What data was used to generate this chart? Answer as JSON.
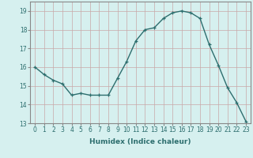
{
  "x": [
    0,
    1,
    2,
    3,
    4,
    5,
    6,
    7,
    8,
    9,
    10,
    11,
    12,
    13,
    14,
    15,
    16,
    17,
    18,
    19,
    20,
    21,
    22,
    23
  ],
  "y": [
    16.0,
    15.6,
    15.3,
    15.1,
    14.5,
    14.6,
    14.5,
    14.5,
    14.5,
    15.4,
    16.3,
    17.4,
    18.0,
    18.1,
    18.6,
    18.9,
    19.0,
    18.9,
    18.6,
    17.2,
    16.1,
    14.9,
    14.1,
    13.1
  ],
  "line_color": "#2d6e6e",
  "marker": "+",
  "marker_size": 3,
  "bg_color": "#d6f0ef",
  "grid_color": "#c8a8a8",
  "xlabel": "Humidex (Indice chaleur)",
  "xlim": [
    -0.5,
    23.5
  ],
  "ylim": [
    13,
    19.5
  ],
  "yticks": [
    13,
    14,
    15,
    16,
    17,
    18,
    19
  ],
  "xticks": [
    0,
    1,
    2,
    3,
    4,
    5,
    6,
    7,
    8,
    9,
    10,
    11,
    12,
    13,
    14,
    15,
    16,
    17,
    18,
    19,
    20,
    21,
    22,
    23
  ],
  "tick_label_fontsize": 5.5,
  "xlabel_fontsize": 6.5,
  "line_width": 1.0
}
